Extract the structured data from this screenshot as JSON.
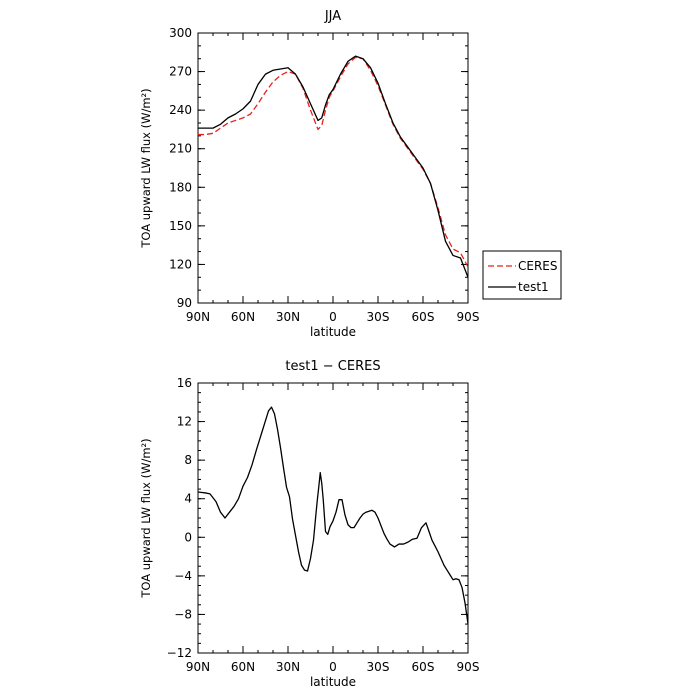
{
  "chart_data": [
    {
      "type": "line",
      "title": "JJA",
      "xlabel": "latitude",
      "ylabel": "TOA upward LW flux (W/m²)",
      "xlim": [
        90,
        -90
      ],
      "ylim": [
        90,
        300
      ],
      "xticks": [
        90,
        60,
        30,
        0,
        -30,
        -60,
        -90
      ],
      "xtick_labels": [
        "90N",
        "60N",
        "30N",
        "0",
        "30S",
        "60S",
        "90S"
      ],
      "yticks": [
        90,
        120,
        150,
        180,
        210,
        240,
        270,
        300
      ],
      "ytick_labels": [
        "90",
        "120",
        "150",
        "180",
        "210",
        "240",
        "270",
        "300"
      ],
      "grid": false,
      "legend": "right-outside",
      "series": [
        {
          "name": "CERES",
          "color": "#e8211d",
          "dash": "dashed",
          "x": [
            90,
            85,
            80,
            75,
            70,
            65,
            60,
            55,
            50,
            45,
            40,
            35,
            30,
            25,
            20,
            15,
            10,
            7.5,
            5,
            2.5,
            0,
            -5,
            -10,
            -15,
            -20,
            -25,
            -30,
            -35,
            -40,
            -45,
            -50,
            -55,
            -60,
            -65,
            -70,
            -75,
            -80,
            -85,
            -90
          ],
          "y": [
            221,
            221,
            222,
            226,
            230,
            232,
            234,
            237,
            245,
            254,
            262,
            267,
            270,
            268,
            257,
            240,
            225,
            228,
            240,
            250,
            255,
            266,
            276,
            281,
            280,
            271,
            259,
            244,
            229,
            218,
            210,
            202,
            194,
            183,
            164,
            143,
            132,
            129,
            118
          ]
        },
        {
          "name": "test1",
          "color": "#000000",
          "dash": "solid",
          "x": [
            90,
            85,
            80,
            75,
            70,
            65,
            60,
            55,
            50,
            45,
            40,
            35,
            30,
            25,
            20,
            15,
            10,
            7.5,
            5,
            2.5,
            0,
            -5,
            -10,
            -15,
            -20,
            -25,
            -30,
            -35,
            -40,
            -45,
            -50,
            -55,
            -60,
            -65,
            -70,
            -75,
            -80,
            -85,
            -90
          ],
          "y": [
            226,
            226,
            226,
            229,
            234,
            237,
            241,
            247,
            260,
            268,
            271,
            272,
            273,
            268,
            258,
            245,
            232,
            234,
            244,
            252,
            256,
            268,
            278,
            282,
            280,
            273,
            261,
            245,
            230,
            219,
            211,
            203,
            195,
            183,
            162,
            138,
            127,
            125,
            110
          ]
        }
      ]
    },
    {
      "type": "line",
      "title": "test1 − CERES",
      "xlabel": "latitude",
      "ylabel": "TOA upward LW flux (W/m²)",
      "xlim": [
        90,
        -90
      ],
      "ylim": [
        -12,
        16
      ],
      "xticks": [
        90,
        60,
        30,
        0,
        -30,
        -60,
        -90
      ],
      "xtick_labels": [
        "90N",
        "60N",
        "30N",
        "0",
        "30S",
        "60S",
        "90S"
      ],
      "yticks": [
        -12,
        -8,
        -4,
        0,
        4,
        8,
        12,
        16
      ],
      "ytick_labels": [
        "−12",
        "−8",
        "−4",
        "0",
        "4",
        "8",
        "12",
        "16"
      ],
      "grid": false,
      "series": [
        {
          "color": "#000000",
          "dash": "solid",
          "x": [
            90,
            85,
            82,
            78,
            75,
            72,
            69,
            66,
            63,
            60,
            57,
            54,
            51,
            49,
            47,
            45,
            43,
            41,
            39,
            37,
            35,
            33,
            31,
            29,
            27,
            25,
            23,
            21,
            19,
            17,
            15,
            13,
            11.5,
            10.5,
            9.5,
            8.5,
            7.5,
            6.5,
            5,
            3.5,
            2,
            0,
            -2,
            -4,
            -6,
            -8,
            -10,
            -12,
            -14,
            -16,
            -18,
            -20,
            -22,
            -24,
            -26,
            -28,
            -30,
            -32,
            -34,
            -36,
            -38,
            -41,
            -44,
            -47,
            -50,
            -53,
            -56,
            -59,
            -62,
            -64,
            -66,
            -68,
            -70,
            -72,
            -74,
            -76,
            -78,
            -80,
            -82,
            -84,
            -86,
            -88,
            -90
          ],
          "y": [
            4.7,
            4.6,
            4.5,
            3.7,
            2.6,
            2.0,
            2.6,
            3.2,
            4.0,
            5.3,
            6.2,
            7.5,
            9.1,
            10.1,
            11.1,
            12.1,
            13.1,
            13.5,
            12.8,
            11.2,
            9.3,
            7.2,
            5.2,
            4.2,
            1.9,
            0.2,
            -1.5,
            -2.9,
            -3.4,
            -3.5,
            -2.2,
            -0.3,
            2.2,
            3.8,
            5.2,
            6.7,
            5.6,
            3.9,
            0.6,
            0.3,
            1.1,
            1.7,
            2.6,
            3.9,
            3.9,
            2.3,
            1.3,
            1.0,
            1.0,
            1.5,
            2.0,
            2.4,
            2.6,
            2.7,
            2.8,
            2.6,
            2.0,
            1.2,
            0.4,
            -0.2,
            -0.7,
            -1.0,
            -0.7,
            -0.7,
            -0.5,
            -0.2,
            -0.1,
            1.0,
            1.5,
            0.6,
            -0.3,
            -0.9,
            -1.5,
            -2.2,
            -2.9,
            -3.4,
            -3.9,
            -4.4,
            -4.3,
            -4.4,
            -5.2,
            -6.8,
            -9.0
          ]
        }
      ]
    }
  ]
}
